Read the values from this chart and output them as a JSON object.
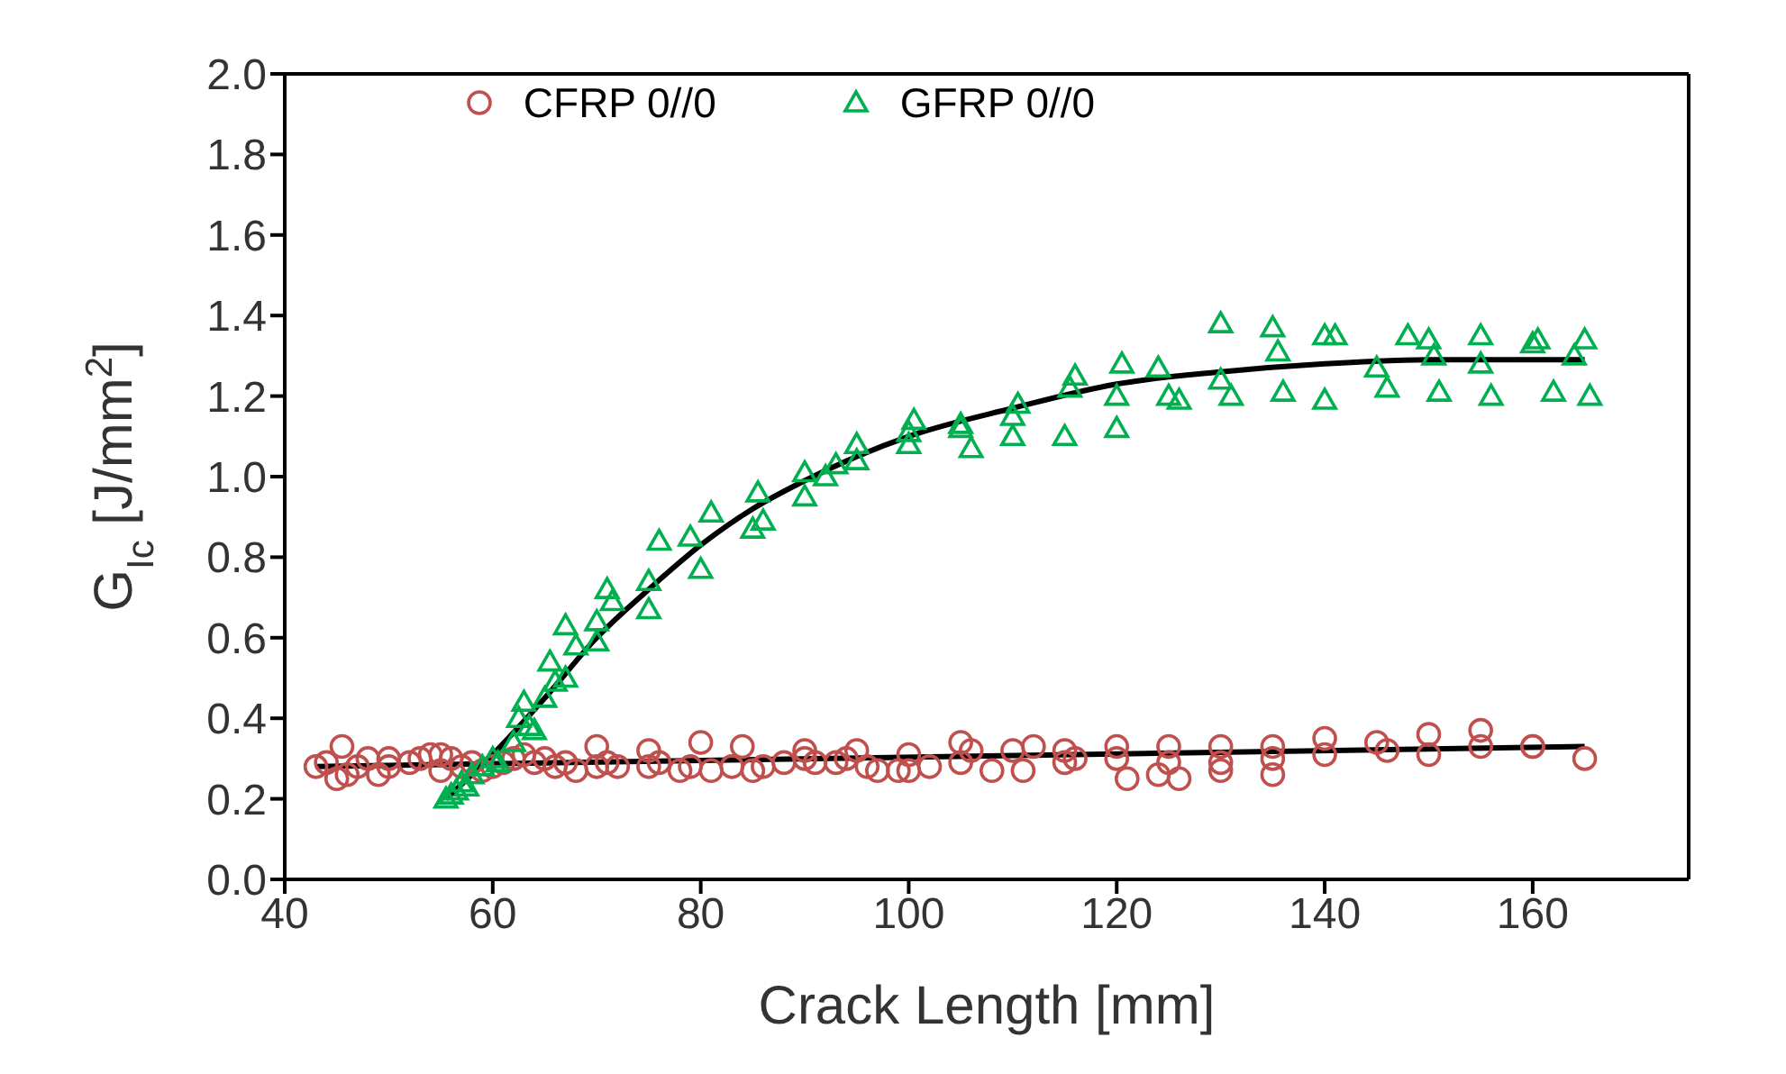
{
  "chart_data": {
    "type": "scatter",
    "xlabel": "Crack Length [mm]",
    "ylabel": "G$_{Ic}$ [J/mm$^{2}$]",
    "xlim": [
      40,
      175
    ],
    "xticks": [
      40,
      60,
      80,
      100,
      120,
      140,
      160
    ],
    "ylim": [
      0,
      2
    ],
    "yticks": [
      {
        "value": 0,
        "label": "0.0"
      },
      {
        "value": 0.2,
        "label": "0.2"
      },
      {
        "value": 0.4,
        "label": "0.4"
      },
      {
        "value": 0.6,
        "label": "0.6"
      },
      {
        "value": 0.8,
        "label": "0.8"
      },
      {
        "value": 1,
        "label": "1.0"
      },
      {
        "value": 1.2,
        "label": "1.2"
      },
      {
        "value": 1.4,
        "label": "1.4"
      },
      {
        "value": 1.6,
        "label": "1.6"
      },
      {
        "value": 1.8,
        "label": "1.8"
      },
      {
        "value": 2,
        "label": "2.0"
      }
    ],
    "grid": false,
    "legend": "top",
    "series": [
      {
        "name": "CFRP 0//0",
        "marker": "circle",
        "color": "#c0504d",
        "x": [
          43,
          44,
          45,
          45.5,
          46,
          47,
          48,
          49,
          50,
          50,
          52,
          53,
          54,
          55,
          55,
          56,
          57,
          58,
          59,
          60,
          61,
          62,
          63,
          64,
          65,
          66,
          67,
          68,
          70,
          70,
          71,
          72,
          75,
          75,
          76,
          78,
          79,
          80,
          81,
          83,
          84,
          85,
          86,
          88,
          90,
          90,
          91,
          93,
          94,
          95,
          96,
          97,
          99,
          100,
          100,
          102,
          105,
          105,
          106,
          108,
          110,
          111,
          112,
          115,
          115,
          116,
          120,
          120,
          121,
          124,
          125,
          125,
          126,
          130,
          130,
          130,
          135,
          135,
          135,
          140,
          140,
          145,
          146,
          150,
          150,
          155,
          155,
          160,
          160,
          165
        ],
        "values": [
          0.28,
          0.29,
          0.25,
          0.33,
          0.26,
          0.28,
          0.3,
          0.26,
          0.28,
          0.3,
          0.29,
          0.3,
          0.31,
          0.27,
          0.31,
          0.3,
          0.28,
          0.29,
          0.27,
          0.28,
          0.29,
          0.3,
          0.31,
          0.29,
          0.3,
          0.28,
          0.29,
          0.27,
          0.28,
          0.33,
          0.29,
          0.28,
          0.28,
          0.32,
          0.29,
          0.27,
          0.28,
          0.34,
          0.27,
          0.28,
          0.33,
          0.27,
          0.28,
          0.29,
          0.32,
          0.3,
          0.29,
          0.29,
          0.3,
          0.32,
          0.28,
          0.27,
          0.27,
          0.31,
          0.27,
          0.28,
          0.34,
          0.29,
          0.32,
          0.27,
          0.32,
          0.27,
          0.33,
          0.32,
          0.29,
          0.3,
          0.3,
          0.33,
          0.25,
          0.26,
          0.33,
          0.29,
          0.25,
          0.33,
          0.29,
          0.27,
          0.33,
          0.3,
          0.26,
          0.35,
          0.31,
          0.34,
          0.32,
          0.36,
          0.31,
          0.37,
          0.33,
          0.33,
          0.33,
          0.3
        ]
      },
      {
        "name": "GFRP 0//0",
        "marker": "triangle",
        "color": "#00b050",
        "x": [
          55.5,
          56,
          56.5,
          57,
          57.5,
          58,
          59,
          60,
          60.5,
          62,
          62.5,
          63,
          63.5,
          64,
          65,
          65.5,
          66,
          67,
          67,
          68,
          70,
          70,
          71,
          71.5,
          75,
          75,
          76,
          79,
          80,
          81,
          85,
          85.5,
          86,
          90,
          90,
          92,
          93,
          95,
          95,
          100,
          100,
          100.5,
          105,
          105,
          106,
          110,
          110,
          110.5,
          115,
          115.5,
          116,
          120,
          120,
          120.5,
          124,
          125,
          126,
          130,
          130,
          131,
          135,
          135.5,
          136,
          140,
          140,
          141,
          145,
          146,
          148,
          150,
          150.5,
          151,
          155,
          155,
          156,
          160,
          160.5,
          162,
          164,
          165,
          165.5
        ],
        "values": [
          0.2,
          0.21,
          0.22,
          0.24,
          0.23,
          0.26,
          0.28,
          0.3,
          0.29,
          0.34,
          0.4,
          0.44,
          0.38,
          0.37,
          0.45,
          0.54,
          0.49,
          0.5,
          0.63,
          0.58,
          0.59,
          0.64,
          0.72,
          0.69,
          0.67,
          0.74,
          0.84,
          0.85,
          0.77,
          0.91,
          0.87,
          0.96,
          0.89,
          0.95,
          1.01,
          1.0,
          1.03,
          1.04,
          1.08,
          1.08,
          1.11,
          1.14,
          1.12,
          1.13,
          1.07,
          1.1,
          1.15,
          1.18,
          1.1,
          1.22,
          1.25,
          1.12,
          1.2,
          1.28,
          1.27,
          1.2,
          1.19,
          1.38,
          1.24,
          1.2,
          1.37,
          1.31,
          1.21,
          1.35,
          1.19,
          1.35,
          1.27,
          1.22,
          1.35,
          1.34,
          1.3,
          1.21,
          1.35,
          1.28,
          1.2,
          1.33,
          1.34,
          1.21,
          1.3,
          1.34,
          1.2
        ]
      },
      {
        "type": "line",
        "color": "#000000",
        "x": [
          43,
          165
        ],
        "values": [
          0.28,
          0.33
        ]
      },
      {
        "type": "line",
        "color": "#000000",
        "x": [
          55.5,
          60,
          65,
          70,
          75,
          80,
          85,
          90,
          95,
          100,
          110,
          120,
          130,
          140,
          150,
          165
        ],
        "values": [
          0.2,
          0.31,
          0.45,
          0.6,
          0.72,
          0.83,
          0.92,
          0.99,
          1.05,
          1.1,
          1.17,
          1.23,
          1.26,
          1.28,
          1.29,
          1.29
        ]
      }
    ]
  }
}
